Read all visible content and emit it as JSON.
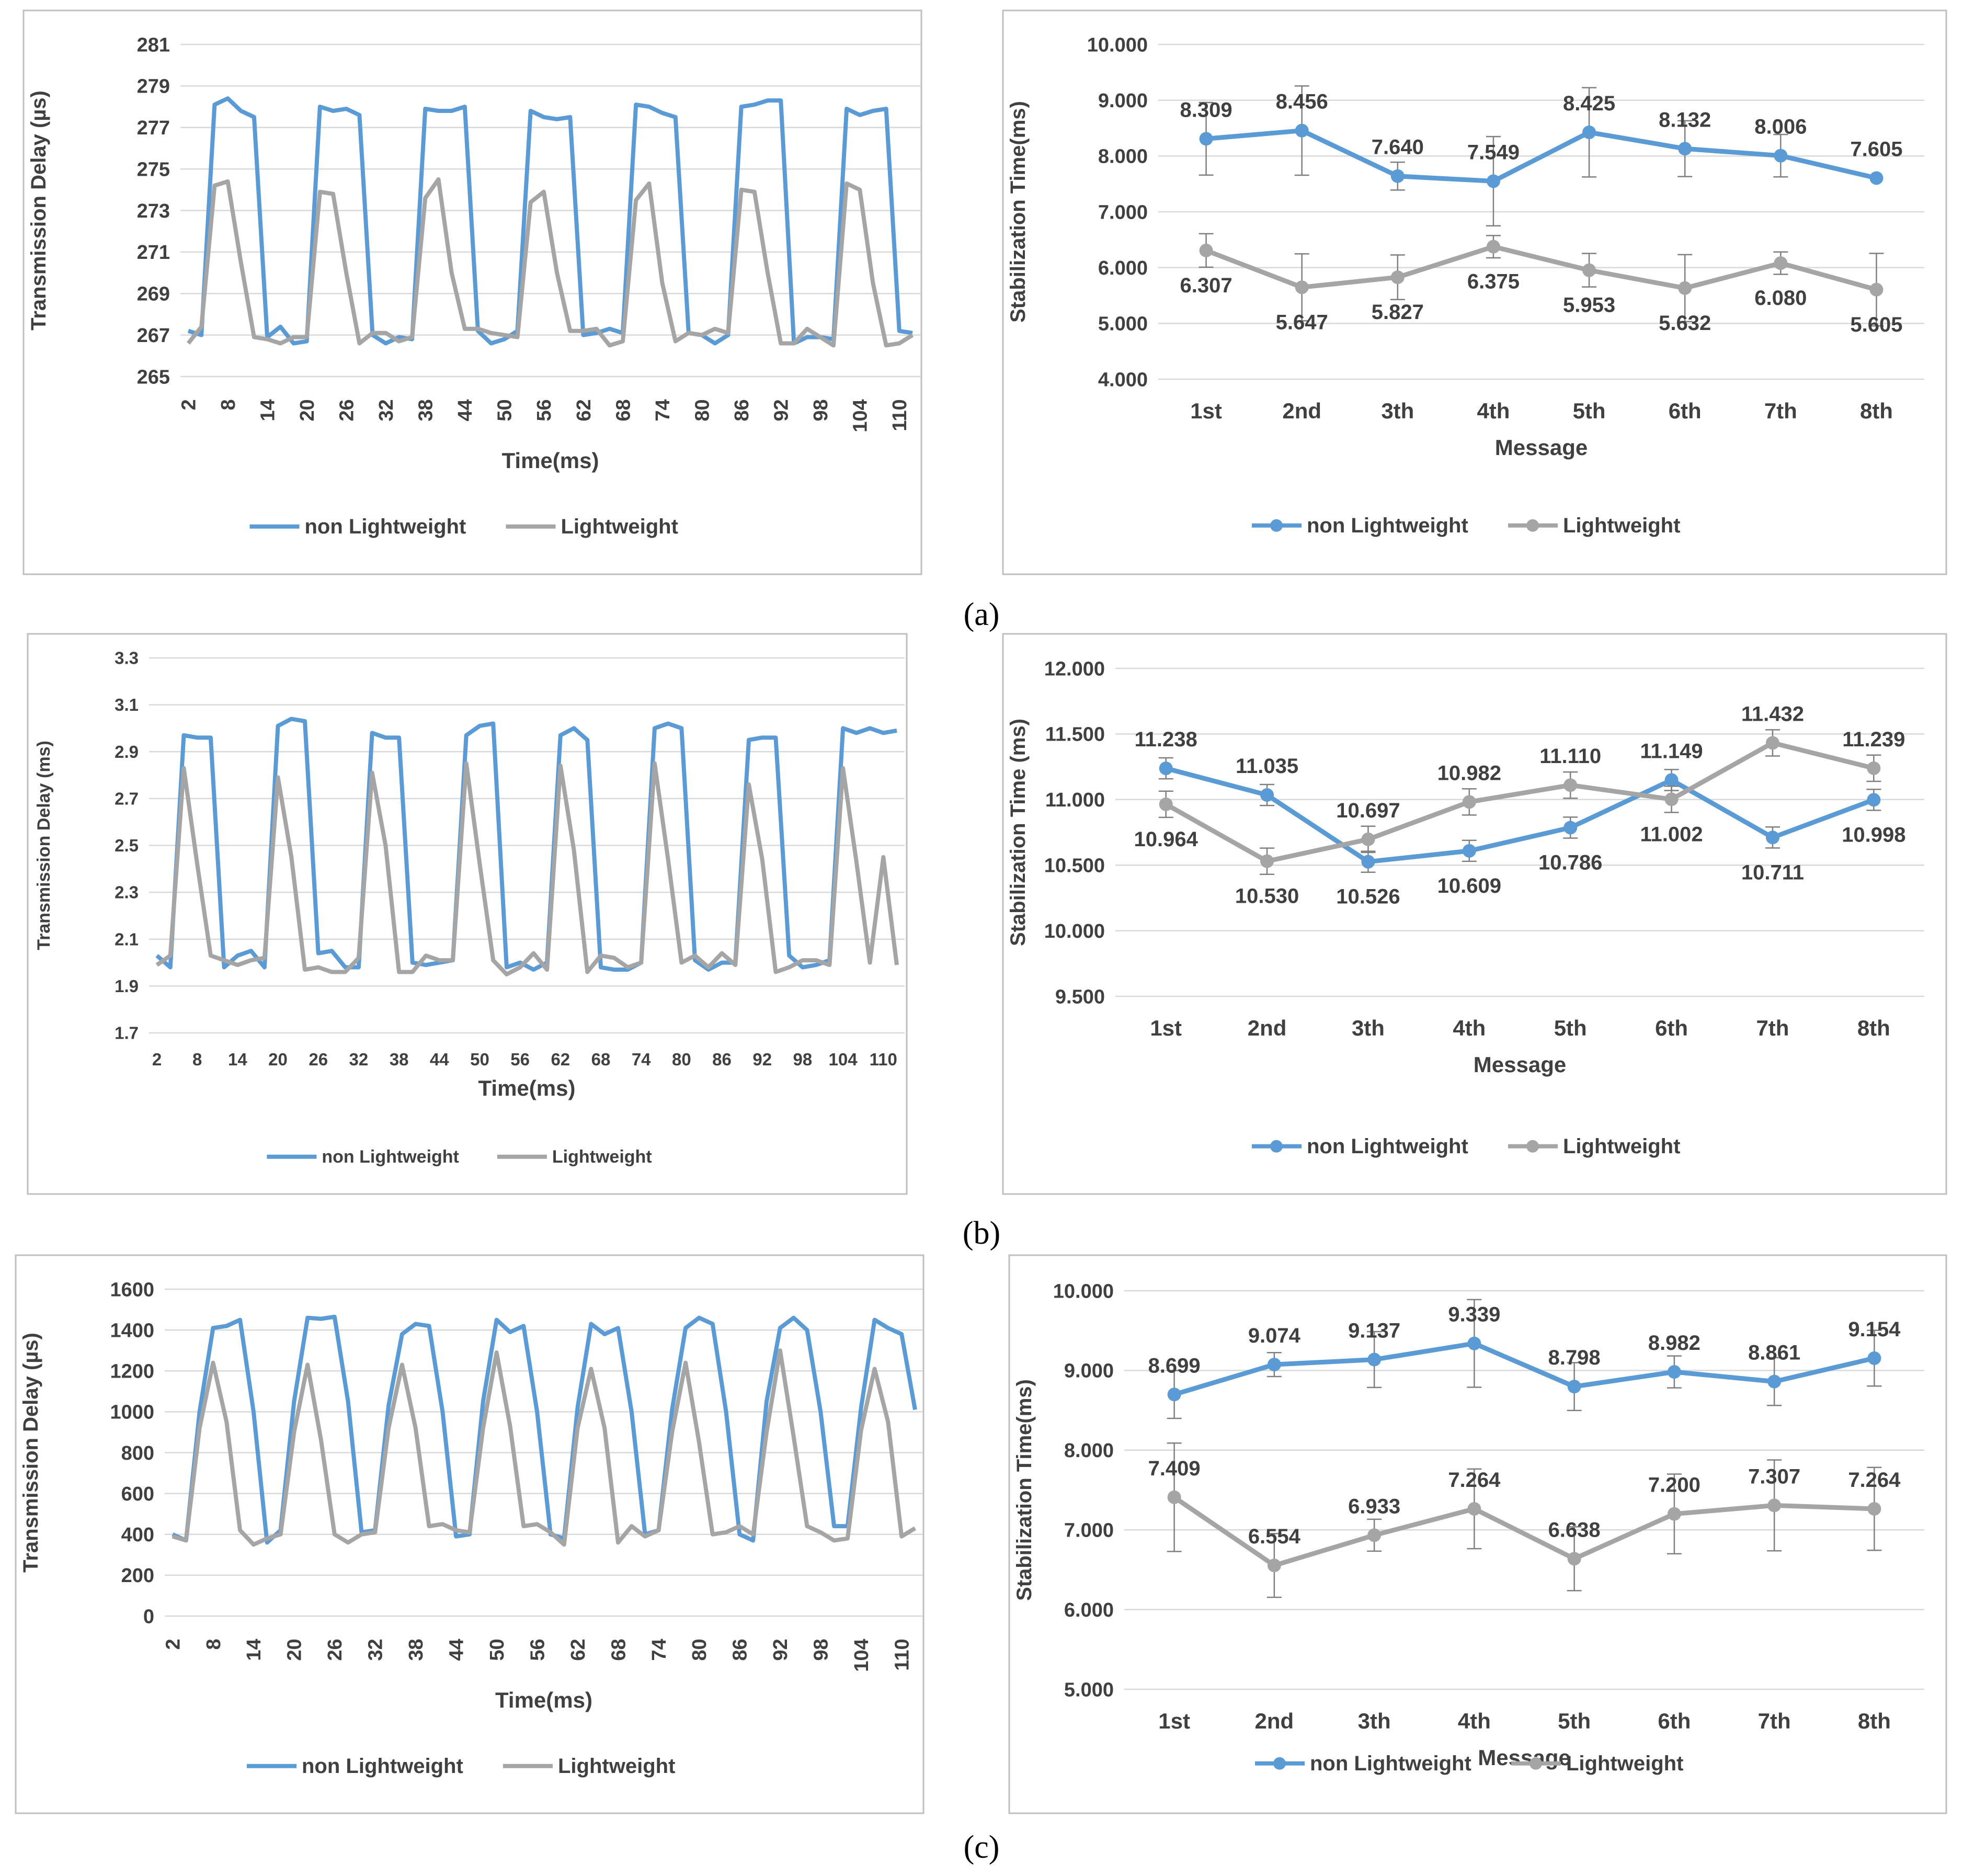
{
  "panel_labels": [
    "(a)",
    "(b)",
    "(c)"
  ],
  "colors": {
    "non_lightweight": "#5B9BD5",
    "lightweight": "#A5A5A5",
    "grid": "#D9D9D9",
    "frame": "#BFBFBF",
    "text": "#404040",
    "error_bar": "#7F7F7F"
  },
  "chart_data": [
    {
      "id": "a-left",
      "type": "line",
      "title": "",
      "xlabel": "Time(ms)",
      "ylabel": "Transmission Delay (µs)",
      "yticks": [
        "265",
        "267",
        "269",
        "271",
        "273",
        "275",
        "277",
        "279",
        "281"
      ],
      "ylim": [
        265,
        281
      ],
      "x": [
        2,
        4,
        6,
        8,
        10,
        12,
        14,
        16,
        18,
        20,
        22,
        24,
        26,
        28,
        30,
        32,
        34,
        36,
        38,
        40,
        42,
        44,
        46,
        48,
        50,
        52,
        54,
        56,
        58,
        60,
        62,
        64,
        66,
        68,
        70,
        72,
        74,
        76,
        78,
        80,
        82,
        84,
        86,
        88,
        90,
        92,
        94,
        96,
        98,
        100,
        102,
        104,
        106,
        108,
        110,
        112
      ],
      "xticks": [
        "2",
        "8",
        "14",
        "20",
        "26",
        "32",
        "38",
        "44",
        "50",
        "56",
        "62",
        "68",
        "74",
        "80",
        "86",
        "92",
        "98",
        "104",
        "110"
      ],
      "xtick_rotation": "vertical",
      "grid": "horizontal",
      "legend_position": "bottom",
      "legend_markers": false,
      "series": [
        {
          "name": "non Lightweight",
          "values": [
            267.2,
            267.0,
            278.1,
            278.4,
            277.8,
            277.5,
            266.9,
            267.4,
            266.6,
            266.7,
            278.0,
            277.8,
            277.9,
            277.6,
            267.0,
            266.6,
            266.9,
            266.8,
            277.9,
            277.8,
            277.8,
            278.0,
            267.2,
            266.6,
            266.8,
            267.2,
            277.8,
            277.5,
            277.4,
            277.5,
            267.0,
            267.1,
            267.3,
            267.1,
            278.1,
            278.0,
            277.7,
            277.5,
            267.1,
            267.0,
            266.6,
            267.0,
            278.0,
            278.1,
            278.3,
            278.3,
            266.6,
            266.9,
            266.9,
            266.8,
            277.9,
            277.6,
            277.8,
            277.9,
            267.2,
            267.1
          ]
        },
        {
          "name": "Lightweight",
          "values": [
            266.6,
            267.4,
            274.2,
            274.4,
            270.5,
            266.9,
            266.8,
            266.6,
            266.9,
            266.9,
            273.9,
            273.8,
            270.0,
            266.6,
            267.1,
            267.1,
            266.7,
            266.9,
            273.6,
            274.5,
            270.0,
            267.3,
            267.3,
            267.1,
            267.0,
            266.9,
            273.4,
            273.9,
            270.0,
            267.2,
            267.2,
            267.3,
            266.5,
            266.7,
            273.5,
            274.3,
            269.5,
            266.7,
            267.1,
            267.0,
            267.3,
            267.1,
            274.0,
            273.9,
            270.0,
            266.6,
            266.6,
            267.3,
            266.9,
            266.5,
            274.3,
            274.0,
            269.5,
            266.5,
            266.6,
            267.0
          ]
        }
      ]
    },
    {
      "id": "a-right",
      "type": "line",
      "title": "",
      "xlabel": "Message",
      "ylabel": "Stabilization Time(ms)",
      "categories": [
        "1st",
        "2nd",
        "3th",
        "4th",
        "5th",
        "6th",
        "7th",
        "8th"
      ],
      "yticks": [
        "4.000",
        "5.000",
        "6.000",
        "7.000",
        "8.000",
        "9.000",
        "10.000"
      ],
      "ylim": [
        4,
        10
      ],
      "grid": "horizontal",
      "legend_position": "bottom",
      "legend_markers": true,
      "series": [
        {
          "name": "non Lightweight",
          "values": [
            8.309,
            8.456,
            7.64,
            7.549,
            8.425,
            8.132,
            8.006,
            7.605
          ],
          "labels": [
            "8.309",
            "8.456",
            "7.640",
            "7.549",
            "8.425",
            "8.132",
            "8.006",
            "7.605"
          ],
          "label_position": "above",
          "error": [
            0.65,
            0.8,
            0.25,
            0.8,
            0.8,
            0.5,
            0.38,
            0.0
          ]
        },
        {
          "name": "Lightweight",
          "values": [
            6.307,
            5.647,
            5.827,
            6.375,
            5.953,
            5.632,
            6.08,
            5.605
          ],
          "labels": [
            "6.307",
            "5.647",
            "5.827",
            "6.375",
            "5.953",
            "5.632",
            "6.080",
            "5.605"
          ],
          "label_position": "below",
          "error": [
            0.3,
            0.6,
            0.4,
            0.2,
            0.3,
            0.6,
            0.2,
            0.65
          ]
        }
      ]
    },
    {
      "id": "b-left",
      "type": "line",
      "title": "",
      "xlabel": "Time(ms)",
      "ylabel": "Transmission Delay (ms)",
      "yticks": [
        "1.7",
        "1.9",
        "2.1",
        "2.3",
        "2.5",
        "2.7",
        "2.9",
        "3.1",
        "3.3"
      ],
      "ylim": [
        1.7,
        3.3
      ],
      "x": [
        2,
        4,
        6,
        8,
        10,
        12,
        14,
        16,
        18,
        20,
        22,
        24,
        26,
        28,
        30,
        32,
        34,
        36,
        38,
        40,
        42,
        44,
        46,
        48,
        50,
        52,
        54,
        56,
        58,
        60,
        62,
        64,
        66,
        68,
        70,
        72,
        74,
        76,
        78,
        80,
        82,
        84,
        86,
        88,
        90,
        92,
        94,
        96,
        98,
        100,
        102,
        104,
        106,
        108,
        110,
        112
      ],
      "xticks": [
        "2",
        "8",
        "14",
        "20",
        "26",
        "32",
        "38",
        "44",
        "50",
        "56",
        "62",
        "68",
        "74",
        "80",
        "86",
        "92",
        "98",
        "104",
        "110"
      ],
      "xtick_rotation": "horizontal",
      "grid": "horizontal",
      "legend_position": "bottom",
      "legend_markers": false,
      "series": [
        {
          "name": "non Lightweight",
          "values": [
            2.03,
            1.98,
            2.97,
            2.96,
            2.96,
            1.98,
            2.03,
            2.05,
            1.98,
            3.01,
            3.04,
            3.03,
            2.04,
            2.05,
            1.98,
            1.98,
            2.98,
            2.96,
            2.96,
            2.0,
            1.99,
            2.0,
            2.01,
            2.97,
            3.01,
            3.02,
            1.98,
            2.0,
            1.97,
            2.0,
            2.97,
            3.0,
            2.95,
            1.98,
            1.97,
            1.97,
            2.0,
            3.0,
            3.02,
            3.0,
            2.01,
            1.97,
            2.0,
            2.0,
            2.95,
            2.96,
            2.96,
            2.03,
            1.98,
            1.99,
            2.01,
            3.0,
            2.98,
            3.0,
            2.98,
            2.99
          ]
        },
        {
          "name": "Lightweight",
          "values": [
            1.99,
            2.03,
            2.83,
            2.42,
            2.03,
            2.01,
            1.99,
            2.01,
            2.02,
            2.79,
            2.45,
            1.97,
            1.98,
            1.96,
            1.96,
            2.02,
            2.81,
            2.5,
            1.96,
            1.96,
            2.03,
            2.01,
            2.01,
            2.85,
            2.42,
            2.01,
            1.95,
            1.98,
            2.04,
            1.97,
            2.84,
            2.48,
            1.96,
            2.03,
            2.02,
            1.98,
            2.0,
            2.85,
            2.44,
            2.0,
            2.03,
            1.98,
            2.04,
            1.99,
            2.76,
            2.44,
            1.96,
            1.98,
            2.01,
            2.01,
            1.99,
            2.83,
            2.43,
            2.0,
            2.45,
            1.99
          ]
        }
      ]
    },
    {
      "id": "b-right",
      "type": "line",
      "title": "",
      "xlabel": "Message",
      "ylabel": "Stabilization Time (ms)",
      "categories": [
        "1st",
        "2nd",
        "3th",
        "4th",
        "5th",
        "6th",
        "7th",
        "8th"
      ],
      "yticks": [
        "9.500",
        "10.000",
        "10.500",
        "11.000",
        "11.500",
        "12.000"
      ],
      "ylim": [
        9.5,
        12
      ],
      "grid": "horizontal",
      "legend_position": "bottom",
      "legend_markers": true,
      "series": [
        {
          "name": "non Lightweight",
          "values": [
            11.238,
            11.035,
            10.526,
            10.609,
            10.786,
            11.149,
            10.711,
            10.998
          ],
          "labels": [
            "11.238",
            "11.035",
            "10.526",
            "10.609",
            "10.786",
            "11.149",
            "10.711",
            "10.998"
          ],
          "label_position": [
            "above",
            "above",
            "below",
            "below",
            "below",
            "above",
            "below",
            "below"
          ],
          "error": [
            0.08,
            0.08,
            0.08,
            0.08,
            0.08,
            0.08,
            0.08,
            0.08
          ]
        },
        {
          "name": "Lightweight",
          "values": [
            10.964,
            10.53,
            10.697,
            10.982,
            11.11,
            11.002,
            11.432,
            11.239
          ],
          "labels": [
            "10.964",
            "10.530",
            "10.697",
            "10.982",
            "11.110",
            "11.002",
            "11.432",
            "11.239"
          ],
          "label_position": [
            "below",
            "below",
            "above",
            "above",
            "above",
            "below",
            "above",
            "above"
          ],
          "error": [
            0.1,
            0.1,
            0.1,
            0.1,
            0.1,
            0.1,
            0.1,
            0.1
          ]
        }
      ]
    },
    {
      "id": "c-left",
      "type": "line",
      "title": "",
      "xlabel": "Time(ms)",
      "ylabel": "Transmission Delay (µs)",
      "yticks": [
        "0",
        "200",
        "400",
        "600",
        "800",
        "1000",
        "1200",
        "1400",
        "1600"
      ],
      "ylim": [
        0,
        1600
      ],
      "x": [
        2,
        4,
        6,
        8,
        10,
        12,
        14,
        16,
        18,
        20,
        22,
        24,
        26,
        28,
        30,
        32,
        34,
        36,
        38,
        40,
        42,
        44,
        46,
        48,
        50,
        52,
        54,
        56,
        58,
        60,
        62,
        64,
        66,
        68,
        70,
        72,
        74,
        76,
        78,
        80,
        82,
        84,
        86,
        88,
        90,
        92,
        94,
        96,
        98,
        100,
        102,
        104,
        106,
        108,
        110,
        112
      ],
      "xticks": [
        "2",
        "8",
        "14",
        "20",
        "26",
        "32",
        "38",
        "44",
        "50",
        "56",
        "62",
        "68",
        "74",
        "80",
        "86",
        "92",
        "98",
        "104",
        "110"
      ],
      "xtick_rotation": "vertical",
      "grid": "horizontal",
      "legend_position": "bottom",
      "legend_markers": false,
      "series": [
        {
          "name": "non Lightweight",
          "values": [
            400,
            370,
            1000,
            1410,
            1420,
            1450,
            1000,
            360,
            420,
            1050,
            1460,
            1455,
            1465,
            1050,
            410,
            420,
            1030,
            1380,
            1430,
            1420,
            1000,
            390,
            400,
            1050,
            1450,
            1390,
            1420,
            1000,
            400,
            380,
            1020,
            1430,
            1380,
            1410,
            1000,
            400,
            420,
            1010,
            1410,
            1460,
            1430,
            1000,
            400,
            370,
            1050,
            1410,
            1460,
            1400,
            1000,
            440,
            440,
            1020,
            1450,
            1410,
            1380,
            1010
          ]
        },
        {
          "name": "Lightweight",
          "values": [
            390,
            370,
            920,
            1240,
            950,
            420,
            350,
            380,
            400,
            900,
            1230,
            860,
            400,
            360,
            400,
            410,
            920,
            1230,
            920,
            440,
            450,
            420,
            410,
            920,
            1290,
            930,
            440,
            450,
            410,
            350,
            920,
            1210,
            920,
            360,
            440,
            390,
            420,
            900,
            1240,
            850,
            400,
            410,
            440,
            400,
            900,
            1300,
            880,
            440,
            410,
            370,
            380,
            910,
            1210,
            950,
            390,
            430
          ]
        }
      ]
    },
    {
      "id": "c-right",
      "type": "line",
      "title": "",
      "xlabel": "Message",
      "ylabel": "Stabilization Time(ms)",
      "categories": [
        "1st",
        "2nd",
        "3th",
        "4th",
        "5th",
        "6th",
        "7th",
        "8th"
      ],
      "yticks": [
        "5.000",
        "6.000",
        "7.000",
        "8.000",
        "9.000",
        "10.000"
      ],
      "ylim": [
        5,
        10
      ],
      "grid": "horizontal",
      "legend_position": "bottom",
      "legend_markers": true,
      "series": [
        {
          "name": "non Lightweight",
          "values": [
            8.699,
            9.074,
            9.137,
            9.339,
            8.798,
            8.982,
            8.861,
            9.154
          ],
          "labels": [
            "8.699",
            "9.074",
            "9.137",
            "9.339",
            "8.798",
            "8.982",
            "8.861",
            "9.154"
          ],
          "label_position": "above",
          "error": [
            0.3,
            0.15,
            0.35,
            0.55,
            0.3,
            0.2,
            0.3,
            0.35
          ]
        },
        {
          "name": "Lightweight",
          "values": [
            7.409,
            6.554,
            6.933,
            7.264,
            6.638,
            7.2,
            7.307,
            7.264
          ],
          "labels": [
            "7.409",
            "6.554",
            "6.933",
            "7.264",
            "6.638",
            "7.200",
            "7.307",
            "7.264"
          ],
          "label_position": "above",
          "error": [
            0.68,
            0.4,
            0.2,
            0.5,
            0.4,
            0.5,
            0.57,
            0.52
          ]
        }
      ]
    }
  ]
}
